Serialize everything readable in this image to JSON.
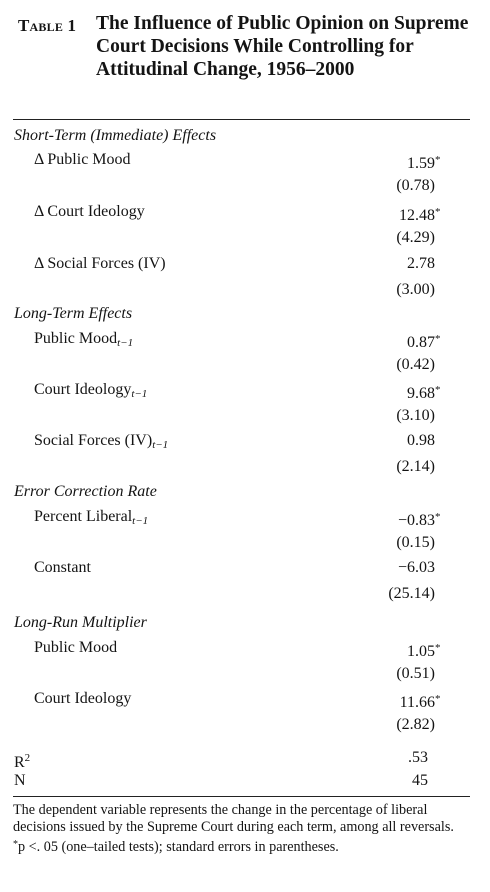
{
  "table": {
    "number_label": "Table 1",
    "title": "The Influence of Public Opinion on Supreme Court Decisions While Controlling for Attitudinal Change, 1956–2000"
  },
  "sections": {
    "short_term": {
      "heading": "Short-Term (Immediate) Effects",
      "rows": [
        {
          "label": "Δ Public Mood",
          "coef": "1.59",
          "se": "(0.78)"
        },
        {
          "label": "Δ Court Ideology",
          "coef": "12.48",
          "se": "(4.29)"
        },
        {
          "label": "Δ Social Forces (IV)",
          "coef": "2.78",
          "se": "(3.00)"
        }
      ]
    },
    "long_term": {
      "heading": "Long-Term Effects",
      "rows": [
        {
          "label": "Public Mood",
          "sub": "t−1",
          "coef": "0.87",
          "se": "(0.42)"
        },
        {
          "label": "Court Ideology",
          "sub": "t−1",
          "coef": "9.68",
          "se": "(3.10)"
        },
        {
          "label": "Social Forces (IV)",
          "sub": "t−1",
          "coef": "0.98",
          "se": "(2.14)"
        }
      ]
    },
    "error_correction": {
      "heading": "Error Correction Rate",
      "rows": [
        {
          "label": "Percent Liberal",
          "sub": "t−1",
          "coef": "−0.83",
          "se": "(0.15)"
        },
        {
          "label": "Constant",
          "coef": "−6.03",
          "se": "(25.14)"
        }
      ]
    },
    "long_run": {
      "heading": "Long-Run Multiplier",
      "rows": [
        {
          "label": "Public Mood",
          "coef": "1.05",
          "se": "(0.51)"
        },
        {
          "label": "Court Ideology",
          "coef": "11.66",
          "se": "(2.82)"
        }
      ]
    }
  },
  "stats": {
    "r2_label": "R",
    "r2_sup": "2",
    "r2_value": ".53",
    "n_label": "N",
    "n_value": "45"
  },
  "notes": {
    "dependent": "The dependent variable represents the change in the percentage of liberal decisions issued by the Supreme Court during each term, among all reversals.",
    "significance_marker": "*",
    "significance": "p <. 05 (one–tailed tests); standard errors in parentheses."
  }
}
